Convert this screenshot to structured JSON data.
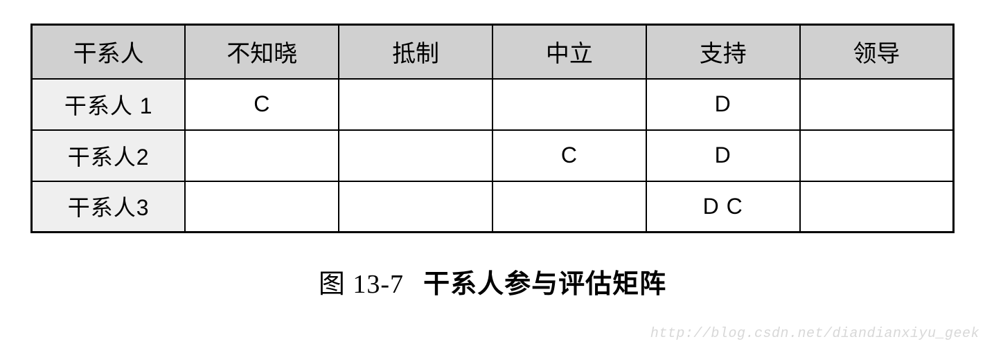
{
  "table": {
    "header_bg": "#d0d0d0",
    "rowheader_bg": "#efefef",
    "border_color": "#000000",
    "columns": [
      "干系人",
      "不知晓",
      "抵制",
      "中立",
      "支持",
      "领导"
    ],
    "rows": [
      {
        "label": "干系人 1",
        "cells": [
          "C",
          "",
          "",
          "D",
          ""
        ]
      },
      {
        "label": "干系人2",
        "cells": [
          "",
          "",
          "C",
          "D",
          ""
        ]
      },
      {
        "label": "干系人3",
        "cells": [
          "",
          "",
          "",
          "D C",
          ""
        ]
      }
    ]
  },
  "caption": {
    "prefix": "图 13-7",
    "title": "干系人参与评估矩阵"
  },
  "watermark": "http://blog.csdn.net/diandianxiyu_geek"
}
